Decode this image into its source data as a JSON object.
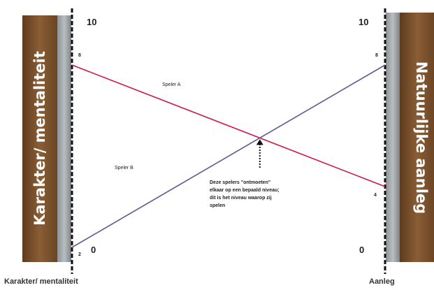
{
  "left_bar": {
    "label": "Karakter/ mentaliteit",
    "color": "#7a5230"
  },
  "right_bar": {
    "label": "Natuurlijke aanleg",
    "color": "#7a5230"
  },
  "axes": {
    "left": {
      "top": "10",
      "bottom": "0"
    },
    "right": {
      "top": "10",
      "bottom": "0"
    }
  },
  "players": [
    {
      "name": "Speler A",
      "left_value": 8,
      "right_value": 4,
      "left_label": "8",
      "right_label": "4",
      "color": "#d01848"
    },
    {
      "name": "Speler B",
      "left_value": 2,
      "right_value": 8,
      "left_label": "2",
      "right_label": "8",
      "color": "#5c5c94"
    }
  ],
  "annotation": {
    "lines": [
      "Deze spelers \"ontmoeten\"",
      "elkaar op een bepaald niveau;",
      "dit is het niveau waarop zij",
      "spelen"
    ]
  },
  "footer": {
    "left": "Karakter/ mentaliteit",
    "right": "Aanleg"
  }
}
